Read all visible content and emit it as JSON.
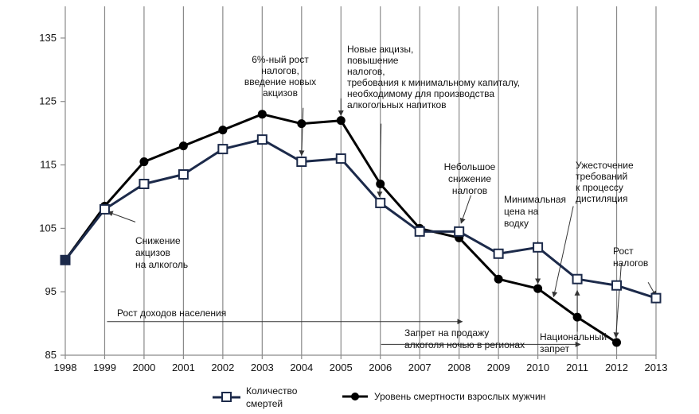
{
  "chart_data": {
    "type": "line",
    "x": [
      1998,
      1999,
      2000,
      2001,
      2002,
      2003,
      2004,
      2005,
      2006,
      2007,
      2008,
      2009,
      2010,
      2011,
      2012,
      2013
    ],
    "ylim": [
      85,
      140
    ],
    "yticks": [
      85,
      95,
      105,
      115,
      125,
      135
    ],
    "grid": "vertical",
    "legend_position": "bottom",
    "series": [
      {
        "name": "Количество смертей",
        "color": "#1c2a4a",
        "marker": "open-square",
        "values": [
          100,
          108,
          112,
          113.5,
          117.5,
          119,
          115.5,
          116,
          109,
          104.5,
          104.5,
          101,
          102,
          97,
          96,
          94
        ]
      },
      {
        "name": "Уровень смертности взрослых мужчин",
        "color": "#000000",
        "marker": "filled-circle",
        "values": [
          100,
          108.5,
          115.5,
          118,
          120.5,
          123,
          121.5,
          122,
          112,
          105,
          103.5,
          97,
          95.5,
          91,
          87,
          null
        ]
      }
    ],
    "legend": {
      "series1_line1": "Количество",
      "series1_line2": "смертей",
      "series2": "Уровень смертности взрослых мужчин"
    },
    "annotations": [
      {
        "id": "a1",
        "lines": [
          "Снижение",
          "акцизов",
          "на алкоголь"
        ]
      },
      {
        "id": "a2",
        "lines": [
          "6%-ный рост",
          "налогов,",
          "введение новых",
          "акцизов"
        ]
      },
      {
        "id": "a3",
        "lines": [
          "Новые акцизы,",
          "повышение",
          "налогов,",
          "требования к минимальному капиталу,",
          "необходимому для производства",
          "алкогольных напитков"
        ]
      },
      {
        "id": "a4",
        "lines": [
          "Небольшое",
          "снижение",
          "налогов"
        ]
      },
      {
        "id": "a5",
        "lines": [
          "Минимальная",
          "цена на",
          "водку"
        ]
      },
      {
        "id": "a6",
        "lines": [
          "Ужесточение",
          "требований",
          "к процессу",
          "дистиляция"
        ]
      },
      {
        "id": "a7",
        "lines": [
          "Рост",
          "налогов"
        ]
      },
      {
        "id": "a8",
        "lines": [
          "Рост доходов населения"
        ]
      },
      {
        "id": "a9",
        "lines": [
          "Запрет на продажу",
          "алкоголя ночью в регионах"
        ]
      },
      {
        "id": "a10",
        "lines": [
          "Национальный",
          "запрет"
        ]
      }
    ]
  }
}
